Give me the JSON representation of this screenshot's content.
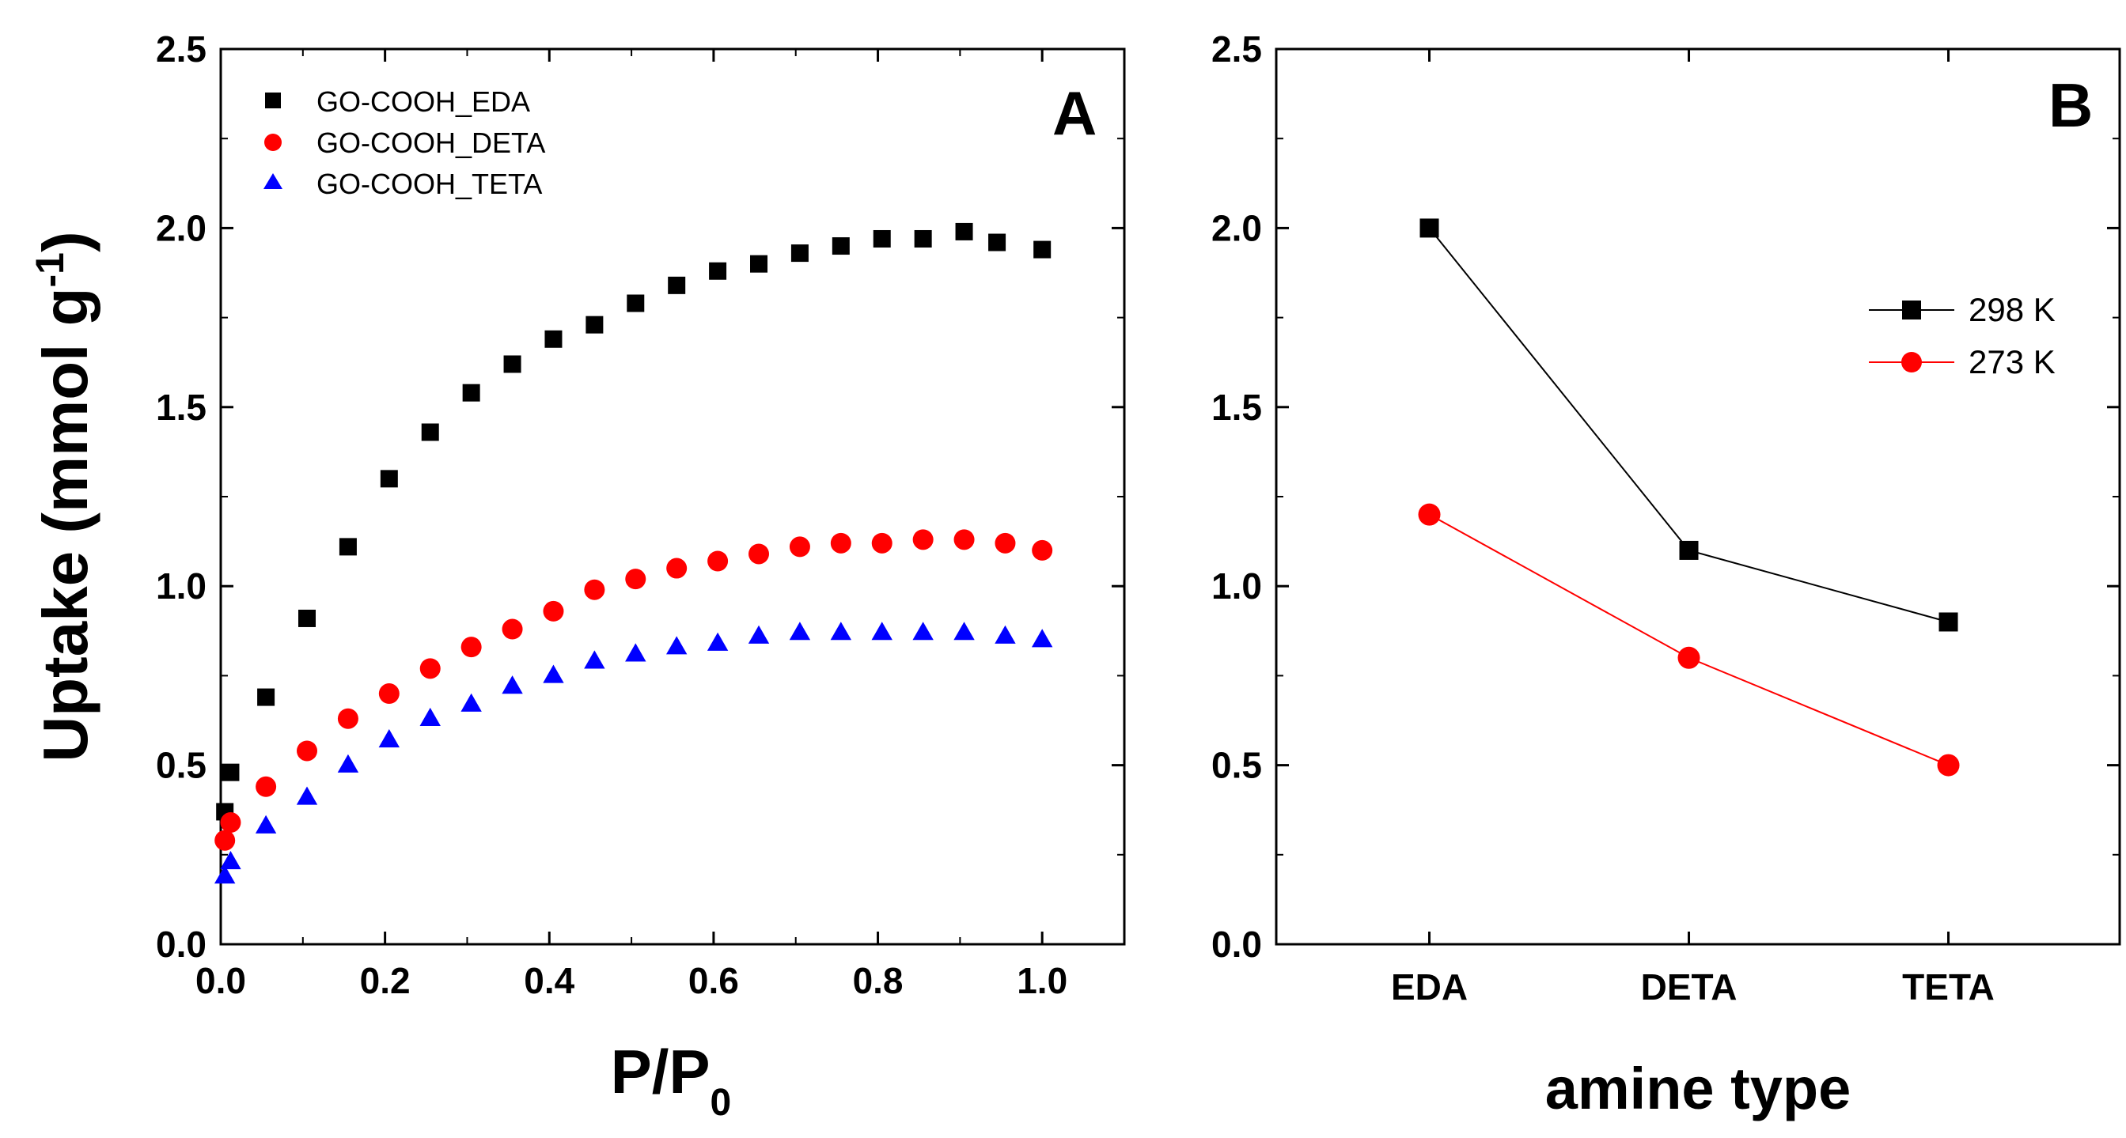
{
  "chart_data": [
    {
      "type": "scatter",
      "panel": "A",
      "xlabel": "P/P",
      "xlabel_sub": "0",
      "ylabel": "Uptake (mmol g",
      "ylabel_sup": "-1",
      "ylabel_close": ")",
      "xlim": [
        0,
        1.1
      ],
      "ylim": [
        0,
        2.5
      ],
      "xticks": [
        "0.0",
        "0.2",
        "0.4",
        "0.6",
        "0.8",
        "1.0"
      ],
      "yticks": [
        "0.0",
        "0.5",
        "1.0",
        "1.5",
        "2.0",
        "2.5"
      ],
      "legend_position": "top-left",
      "series": [
        {
          "name": "GO-COOH_EDA",
          "marker": "square",
          "color": "#000000",
          "x": [
            0.005,
            0.012,
            0.055,
            0.105,
            0.155,
            0.205,
            0.255,
            0.305,
            0.355,
            0.405,
            0.455,
            0.505,
            0.555,
            0.605,
            0.655,
            0.705,
            0.755,
            0.805,
            0.855,
            0.905,
            0.945,
            1.0
          ],
          "y": [
            0.37,
            0.48,
            0.69,
            0.91,
            1.11,
            1.3,
            1.43,
            1.54,
            1.62,
            1.69,
            1.73,
            1.79,
            1.84,
            1.88,
            1.9,
            1.93,
            1.95,
            1.97,
            1.97,
            1.99,
            1.96,
            1.94
          ]
        },
        {
          "name": "GO-COOH_DETA",
          "marker": "circle",
          "color": "#ff0000",
          "x": [
            0.005,
            0.012,
            0.055,
            0.105,
            0.155,
            0.205,
            0.255,
            0.305,
            0.355,
            0.405,
            0.455,
            0.505,
            0.555,
            0.605,
            0.655,
            0.705,
            0.755,
            0.805,
            0.855,
            0.905,
            0.955,
            1.0
          ],
          "y": [
            0.29,
            0.34,
            0.44,
            0.54,
            0.63,
            0.7,
            0.77,
            0.83,
            0.88,
            0.93,
            0.99,
            1.02,
            1.05,
            1.07,
            1.09,
            1.11,
            1.12,
            1.12,
            1.13,
            1.13,
            1.12,
            1.1
          ]
        },
        {
          "name": "GO-COOH_TETA",
          "marker": "triangle",
          "color": "#0000ff",
          "x": [
            0.005,
            0.012,
            0.055,
            0.105,
            0.155,
            0.205,
            0.255,
            0.305,
            0.355,
            0.405,
            0.455,
            0.505,
            0.555,
            0.605,
            0.655,
            0.705,
            0.755,
            0.805,
            0.855,
            0.905,
            0.955,
            1.0
          ],
          "y": [
            0.19,
            0.23,
            0.33,
            0.41,
            0.5,
            0.57,
            0.63,
            0.67,
            0.72,
            0.75,
            0.79,
            0.81,
            0.83,
            0.84,
            0.86,
            0.87,
            0.87,
            0.87,
            0.87,
            0.87,
            0.86,
            0.85
          ]
        }
      ]
    },
    {
      "type": "line",
      "panel": "B",
      "xlabel": "amine type",
      "ylabel": "",
      "categories": [
        "EDA",
        "DETA",
        "TETA"
      ],
      "ylim": [
        0,
        2.5
      ],
      "yticks": [
        "0.0",
        "0.5",
        "1.0",
        "1.5",
        "2.0",
        "2.5"
      ],
      "legend_position": "top-right",
      "series": [
        {
          "name": "298 K",
          "marker": "square",
          "color": "#000000",
          "values": [
            2.0,
            1.1,
            0.9
          ]
        },
        {
          "name": "273 K",
          "marker": "circle",
          "color": "#ff0000",
          "values": [
            1.2,
            0.8,
            0.5
          ]
        }
      ]
    }
  ]
}
